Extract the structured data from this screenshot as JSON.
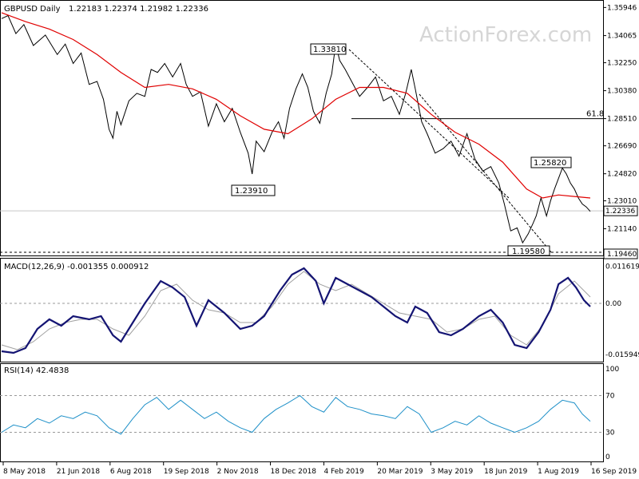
{
  "chart_data": {
    "type": "line",
    "price_panel": {
      "title": "GBPUSD Daily",
      "ohlc": "1.22183 1.22374 1.21982 1.22336",
      "watermark": "ActionForex.com",
      "y_ticks": [
        "1.35946",
        "1.34065",
        "1.32250",
        "1.30380",
        "1.28510",
        "1.26690",
        "1.24820",
        "1.23010",
        "1.21140",
        "1.19460"
      ],
      "ylim": [
        1.1946,
        1.3634
      ],
      "last_price": "1.22336",
      "fib_label": "61.8",
      "fib_level": 1.2851,
      "annotations": [
        {
          "label": "1.33810",
          "value": 1.3381
        },
        {
          "label": "1.23910",
          "value": 1.2391
        },
        {
          "label": "1.25820",
          "value": 1.2582
        },
        {
          "label": "1.19580",
          "value": 1.1958
        }
      ],
      "close_series": {
        "name": "",
        "x": [
          0,
          8,
          18,
          28,
          40,
          55,
          70,
          80,
          90,
          100,
          110,
          120,
          128,
          135,
          140,
          145,
          150,
          160,
          170,
          180,
          188,
          196,
          205,
          215,
          225,
          232,
          240,
          250,
          260,
          270,
          280,
          290,
          300,
          310,
          315,
          320,
          330,
          340,
          348,
          355,
          362,
          370,
          378,
          385,
          392,
          400,
          408,
          415,
          420,
          425,
          432,
          440,
          450,
          460,
          470,
          480,
          490,
          500,
          508,
          515,
          520,
          528,
          535,
          545,
          555,
          565,
          575,
          585,
          595,
          605,
          615,
          625,
          632,
          640,
          648,
          655,
          662,
          668,
          672,
          678,
          685,
          690,
          695,
          700,
          705,
          710,
          715,
          720,
          725,
          730,
          735,
          740
        ],
        "values": [
          1.352,
          1.354,
          1.342,
          1.348,
          1.334,
          1.341,
          1.328,
          1.335,
          1.322,
          1.329,
          1.308,
          1.31,
          1.298,
          1.278,
          1.272,
          1.29,
          1.281,
          1.297,
          1.302,
          1.3,
          1.318,
          1.316,
          1.322,
          1.313,
          1.322,
          1.308,
          1.3,
          1.303,
          1.28,
          1.295,
          1.283,
          1.292,
          1.276,
          1.262,
          1.248,
          1.27,
          1.263,
          1.276,
          1.283,
          1.272,
          1.292,
          1.305,
          1.315,
          1.306,
          1.29,
          1.282,
          1.302,
          1.315,
          1.335,
          1.324,
          1.318,
          1.31,
          1.3,
          1.306,
          1.313,
          1.297,
          1.3,
          1.288,
          1.302,
          1.318,
          1.305,
          1.283,
          1.275,
          1.262,
          1.265,
          1.27,
          1.26,
          1.275,
          1.258,
          1.25,
          1.253,
          1.242,
          1.228,
          1.21,
          1.212,
          1.202,
          1.208,
          1.215,
          1.22,
          1.232,
          1.22,
          1.23,
          1.238,
          1.245,
          1.252,
          1.248,
          1.242,
          1.238,
          1.232,
          1.228,
          1.226,
          1.223
        ]
      },
      "ma_series": {
        "name": "",
        "x": [
          0,
          30,
          60,
          90,
          120,
          150,
          180,
          210,
          240,
          270,
          300,
          330,
          360,
          390,
          420,
          450,
          480,
          510,
          540,
          570,
          600,
          630,
          660,
          680,
          700,
          720,
          740
        ],
        "values": [
          1.356,
          1.35,
          1.345,
          1.338,
          1.328,
          1.316,
          1.306,
          1.308,
          1.305,
          1.298,
          1.287,
          1.278,
          1.275,
          1.285,
          1.298,
          1.306,
          1.306,
          1.302,
          1.288,
          1.276,
          1.268,
          1.256,
          1.238,
          1.232,
          1.234,
          1.233,
          1.232
        ]
      }
    },
    "macd_panel": {
      "title": "MACD(12,26,9) -0.001355 0.000912",
      "y_ticks": [
        "0.011619",
        "0.00",
        "-0.015949"
      ],
      "ylim": [
        -0.0175,
        0.0125
      ],
      "macd_series": {
        "name": "",
        "x": [
          0,
          15,
          30,
          45,
          60,
          75,
          90,
          110,
          125,
          140,
          150,
          165,
          180,
          200,
          215,
          230,
          245,
          260,
          280,
          300,
          315,
          330,
          350,
          365,
          380,
          395,
          405,
          420,
          435,
          450,
          465,
          480,
          495,
          510,
          520,
          535,
          550,
          565,
          580,
          600,
          615,
          630,
          645,
          660,
          675,
          690,
          700,
          712,
          722,
          732,
          740
        ],
        "values": [
          -0.015,
          -0.0155,
          -0.014,
          -0.008,
          -0.005,
          -0.007,
          -0.004,
          -0.005,
          -0.004,
          -0.01,
          -0.012,
          -0.006,
          0.0,
          0.007,
          0.005,
          0.002,
          -0.007,
          0.001,
          -0.003,
          -0.008,
          -0.007,
          -0.004,
          0.004,
          0.009,
          0.011,
          0.007,
          0.0,
          0.008,
          0.006,
          0.004,
          0.002,
          -0.001,
          -0.004,
          -0.006,
          -0.001,
          -0.003,
          -0.009,
          -0.01,
          -0.008,
          -0.004,
          -0.002,
          -0.006,
          -0.013,
          -0.014,
          -0.009,
          -0.002,
          0.006,
          0.008,
          0.005,
          0.001,
          -0.001
        ]
      },
      "signal_series": {
        "name": "",
        "x": [
          0,
          20,
          40,
          60,
          80,
          100,
          120,
          140,
          160,
          180,
          200,
          220,
          240,
          260,
          280,
          300,
          320,
          340,
          360,
          380,
          400,
          420,
          440,
          460,
          480,
          500,
          520,
          540,
          560,
          580,
          600,
          620,
          640,
          660,
          680,
          700,
          720,
          740
        ],
        "values": [
          -0.013,
          -0.0145,
          -0.012,
          -0.008,
          -0.006,
          -0.005,
          -0.005,
          -0.008,
          -0.01,
          -0.004,
          0.004,
          0.006,
          0.001,
          -0.002,
          -0.003,
          -0.006,
          -0.006,
          -0.001,
          0.006,
          0.01,
          0.006,
          0.004,
          0.006,
          0.003,
          0.0,
          -0.003,
          -0.004,
          -0.005,
          -0.009,
          -0.008,
          -0.005,
          -0.004,
          -0.01,
          -0.013,
          -0.007,
          0.003,
          0.007,
          0.002
        ]
      }
    },
    "rsi_panel": {
      "title": "RSI(14) 42.4838",
      "y_ticks": [
        "100",
        "70",
        "30",
        "0"
      ],
      "ylim": [
        0,
        100
      ],
      "rsi_series": {
        "name": "",
        "x": [
          0,
          15,
          30,
          45,
          60,
          75,
          90,
          105,
          120,
          135,
          150,
          165,
          180,
          195,
          210,
          225,
          240,
          255,
          270,
          285,
          300,
          315,
          330,
          345,
          360,
          375,
          390,
          405,
          420,
          435,
          450,
          465,
          480,
          495,
          510,
          525,
          540,
          555,
          570,
          585,
          600,
          615,
          630,
          645,
          660,
          675,
          690,
          705,
          720,
          730,
          740
        ],
        "values": [
          30,
          38,
          35,
          45,
          40,
          48,
          45,
          52,
          48,
          35,
          28,
          45,
          60,
          68,
          55,
          65,
          55,
          45,
          52,
          42,
          35,
          30,
          45,
          55,
          62,
          70,
          58,
          52,
          68,
          58,
          55,
          50,
          48,
          45,
          58,
          50,
          30,
          35,
          42,
          38,
          48,
          40,
          35,
          30,
          35,
          42,
          55,
          65,
          62,
          50,
          42
        ]
      }
    },
    "x_tick_labels": [
      "8 May 2018",
      "21 Jun 2018",
      "6 Aug 2018",
      "19 Sep 2018",
      "2 Nov 2018",
      "18 Dec 2018",
      "4 Feb 2019",
      "20 Mar 2019",
      "3 May 2019",
      "18 Jun 2019",
      "1 Aug 2019",
      "16 Sep 2019"
    ]
  }
}
